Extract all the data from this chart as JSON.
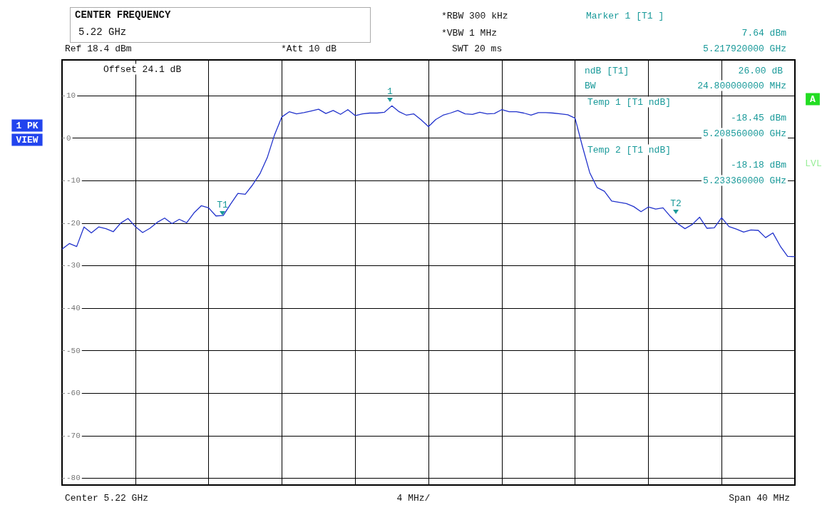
{
  "chart_data": {
    "type": "line",
    "title": "CENTER FREQUENCY",
    "subtitle": "5.22 GHz",
    "categories": [
      null,
      null,
      null,
      null,
      null,
      null,
      null,
      null,
      null,
      null,
      null,
      null,
      null,
      null,
      null,
      null,
      null,
      null,
      null,
      null,
      null,
      null,
      null,
      null,
      null,
      null,
      null,
      null,
      null,
      null,
      null,
      null,
      null,
      null,
      null,
      null,
      null,
      null,
      null,
      null,
      null,
      null,
      null,
      null,
      null,
      null,
      null,
      null,
      null,
      null,
      null,
      null,
      null,
      null,
      null,
      null,
      null,
      null,
      null,
      null,
      null,
      null,
      null,
      null,
      null,
      null,
      null,
      null,
      null,
      null,
      null,
      null,
      null,
      null,
      null,
      null,
      null,
      null,
      null,
      null,
      null,
      null,
      null,
      null,
      null,
      null,
      null,
      null,
      null,
      null,
      null,
      null,
      null,
      null,
      null,
      null,
      null,
      null,
      null,
      null,
      null
    ],
    "ylim": [
      -81.6,
      18.4
    ],
    "yticks": [
      -80,
      -70,
      -60,
      -50,
      -40,
      -30,
      -20,
      -10,
      0,
      10
    ],
    "grid": true,
    "marker": "none",
    "tick_labels": "y",
    "series": [
      {
        "color": "#2233cc",
        "values": [
          -26.1,
          -24.8,
          -25.5,
          -20.9,
          -22.3,
          -20.9,
          -21.3,
          -22.0,
          -20.0,
          -18.9,
          -20.8,
          -22.2,
          -21.2,
          -19.8,
          -18.8,
          -20.1,
          -19.1,
          -19.9,
          -17.6,
          -15.9,
          -16.4,
          -18.3,
          -18.2,
          -15.5,
          -13.0,
          -13.2,
          -11.0,
          -8.4,
          -4.6,
          0.8,
          5.0,
          6.2,
          5.7,
          6.0,
          6.4,
          6.8,
          5.8,
          6.5,
          5.6,
          6.7,
          5.3,
          5.7,
          5.9,
          5.9,
          6.1,
          7.6,
          6.2,
          5.4,
          5.7,
          4.3,
          2.7,
          4.4,
          5.4,
          5.9,
          6.5,
          5.7,
          5.6,
          6.1,
          5.7,
          5.8,
          6.7,
          6.2,
          6.2,
          5.9,
          5.4,
          6.0,
          6.0,
          5.9,
          5.7,
          5.5,
          4.7,
          -1.9,
          -8.1,
          -11.6,
          -12.5,
          -14.8,
          -15.1,
          -15.4,
          -16.1,
          -17.3,
          -16.2,
          -16.7,
          -16.4,
          -18.4,
          -20.1,
          -21.3,
          -20.3,
          -18.6,
          -21.2,
          -21.1,
          -18.7,
          -20.8,
          -21.4,
          -22.1,
          -21.6,
          -21.7,
          -23.4,
          -22.3,
          -25.4,
          -27.8,
          -27.9
        ]
      }
    ],
    "annotations": [
      "*RBW 300 kHz",
      "*VBW 1 MHz",
      "SWT 20 ms",
      "Ref 18.4 dBm",
      "*Att 10 dB",
      "Marker 1 [T1 ]",
      "7.64 dBm",
      "5.217920000 GHz",
      "Offset 24.1 dB",
      "ndB [T1]",
      "26.00 dB",
      "BW",
      "24.800000000 MHz",
      "Temp 1 [T1 ndB]",
      "-18.45 dBm",
      "5.208560000 GHz",
      "Temp 2 [T1 ndB]",
      "-18.18 dBm",
      "5.233360000 GHz",
      "A",
      "1 PK",
      "VIEW",
      "LVL",
      "Center 5.22 GHz",
      "4 MHz/",
      "Span 40 MHz",
      "1",
      "T1",
      "T2"
    ]
  }
}
